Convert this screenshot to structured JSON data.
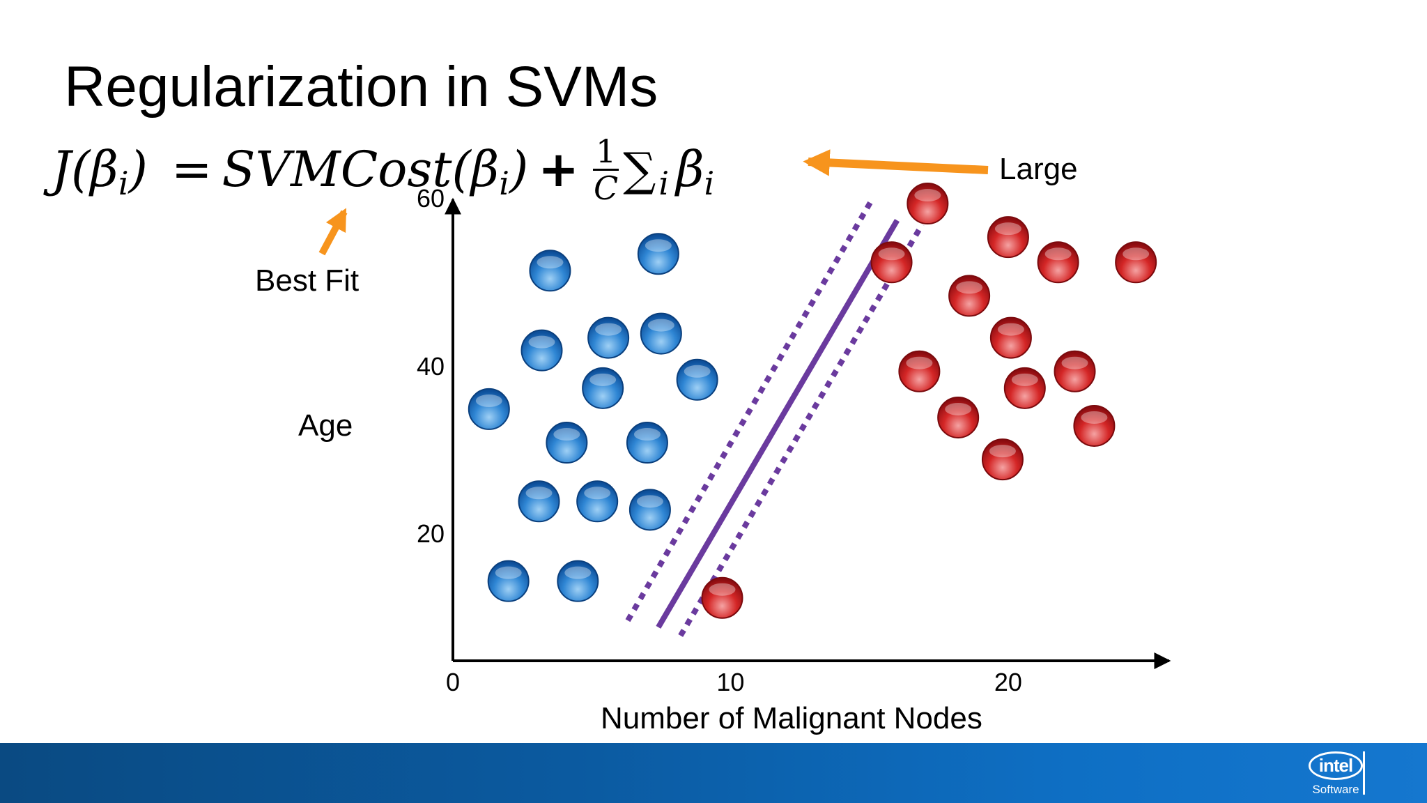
{
  "slide": {
    "title": "Regularization in SVMs",
    "formula": {
      "lhs": "J(β",
      "lhs_sub": "i",
      "lhs_close": ")",
      "equals": "=",
      "cost": "SVMCost(β",
      "cost_sub": "i",
      "cost_close": ")",
      "plus": "+",
      "frac_num": "1",
      "frac_den": "C",
      "sigma": "∑",
      "sigma_sub": "i",
      "beta": "β",
      "beta_sub": "i"
    },
    "annotations": {
      "best_fit": "Best Fit",
      "large": "Large"
    },
    "arrow_color": "#f7941d",
    "footer": {
      "logo_text": "intel",
      "logo_subtext": "Software"
    }
  },
  "chart_data": {
    "type": "scatter",
    "xlabel": "Number of Malignant Nodes",
    "ylabel": "Age",
    "xlim": [
      0,
      25.8
    ],
    "ylim": [
      5,
      60
    ],
    "xticks": [
      0,
      10,
      20
    ],
    "yticks": [
      20,
      40,
      60
    ],
    "series": [
      {
        "color": "#1f6fc2",
        "points": [
          {
            "x": 1.3,
            "y": 35.0
          },
          {
            "x": 3.5,
            "y": 51.5
          },
          {
            "x": 3.2,
            "y": 42.0
          },
          {
            "x": 4.1,
            "y": 31.0
          },
          {
            "x": 3.1,
            "y": 24.0
          },
          {
            "x": 2.0,
            "y": 14.5
          },
          {
            "x": 4.5,
            "y": 14.5
          },
          {
            "x": 5.2,
            "y": 24.0
          },
          {
            "x": 5.6,
            "y": 43.5
          },
          {
            "x": 5.4,
            "y": 37.5
          },
          {
            "x": 7.0,
            "y": 31.0
          },
          {
            "x": 7.1,
            "y": 23.0
          },
          {
            "x": 7.5,
            "y": 44.0
          },
          {
            "x": 7.4,
            "y": 53.5
          },
          {
            "x": 8.8,
            "y": 38.5
          }
        ]
      },
      {
        "color": "#c8171e",
        "points": [
          {
            "x": 9.7,
            "y": 12.5
          },
          {
            "x": 17.1,
            "y": 59.5
          },
          {
            "x": 15.8,
            "y": 52.5
          },
          {
            "x": 20.0,
            "y": 55.5
          },
          {
            "x": 21.8,
            "y": 52.5
          },
          {
            "x": 24.6,
            "y": 52.5
          },
          {
            "x": 18.6,
            "y": 48.5
          },
          {
            "x": 16.8,
            "y": 39.5
          },
          {
            "x": 20.1,
            "y": 43.5
          },
          {
            "x": 22.4,
            "y": 39.5
          },
          {
            "x": 18.2,
            "y": 34.0
          },
          {
            "x": 20.6,
            "y": 37.5
          },
          {
            "x": 19.8,
            "y": 29.0
          },
          {
            "x": 23.1,
            "y": 33.0
          }
        ]
      }
    ],
    "decision_boundary": {
      "x": [
        7.4,
        16.0
      ],
      "y": [
        9.0,
        57.5
      ],
      "color": "#6a3a9e"
    },
    "margins": [
      {
        "x": [
          6.3,
          15.1
        ],
        "y": [
          9.8,
          60.0
        ],
        "color": "#6a3a9e"
      },
      {
        "x": [
          8.2,
          16.9
        ],
        "y": [
          8.0,
          57.0
        ],
        "color": "#6a3a9e"
      }
    ],
    "grid": false,
    "legend": "none"
  }
}
